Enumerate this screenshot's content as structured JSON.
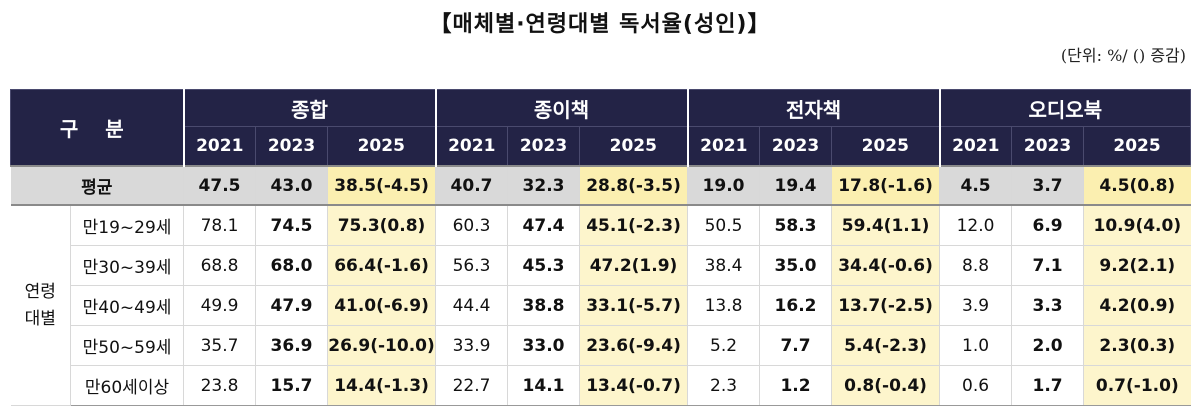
{
  "title": "【매체별·연령대별  독서율(성인)】",
  "unit": "(단위: %/ () 증감)",
  "header": {
    "gubun": "구  분",
    "groups": [
      "종합",
      "종이책",
      "전자책",
      "오디오북"
    ],
    "years": [
      "2021",
      "2023",
      "2025"
    ]
  },
  "average": {
    "label": "평균",
    "values": [
      "47.5",
      "43.0",
      "38.5(-4.5)",
      "40.7",
      "32.3",
      "28.8(-3.5)",
      "19.0",
      "19.4",
      "17.8(-1.6)",
      "4.5",
      "3.7",
      "4.5(0.8)"
    ]
  },
  "age_group": {
    "label_line1": "연령",
    "label_line2": "대별",
    "rows": [
      {
        "label": "만19~29세",
        "values": [
          "78.1",
          "74.5",
          "75.3(0.8)",
          "60.3",
          "47.4",
          "45.1(-2.3)",
          "50.5",
          "58.3",
          "59.4(1.1)",
          "12.0",
          "6.9",
          "10.9(4.0)"
        ]
      },
      {
        "label": "만30~39세",
        "values": [
          "68.8",
          "68.0",
          "66.4(-1.6)",
          "56.3",
          "45.3",
          "47.2(1.9)",
          "38.4",
          "35.0",
          "34.4(-0.6)",
          "8.8",
          "7.1",
          "9.2(2.1)"
        ]
      },
      {
        "label": "만40~49세",
        "values": [
          "49.9",
          "47.9",
          "41.0(-6.9)",
          "44.4",
          "38.8",
          "33.1(-5.7)",
          "13.8",
          "16.2",
          "13.7(-2.5)",
          "3.9",
          "3.3",
          "4.2(0.9)"
        ]
      },
      {
        "label": "만50~59세",
        "values": [
          "35.7",
          "36.9",
          "26.9(-10.0)",
          "33.9",
          "33.0",
          "23.6(-9.4)",
          "5.2",
          "7.7",
          "5.4(-2.3)",
          "1.0",
          "2.0",
          "2.3(0.3)"
        ]
      },
      {
        "label": "만60세이상",
        "values": [
          "23.8",
          "15.7",
          "14.4(-1.3)",
          "22.7",
          "14.1",
          "13.4(-0.7)",
          "2.3",
          "1.2",
          "0.8(-0.4)",
          "0.6",
          "1.7",
          "0.7(-1.0)"
        ]
      }
    ]
  },
  "colors": {
    "header_bg": "#232346",
    "highlight": "#fdf5cc",
    "average_bg": "#d9d9d9"
  }
}
